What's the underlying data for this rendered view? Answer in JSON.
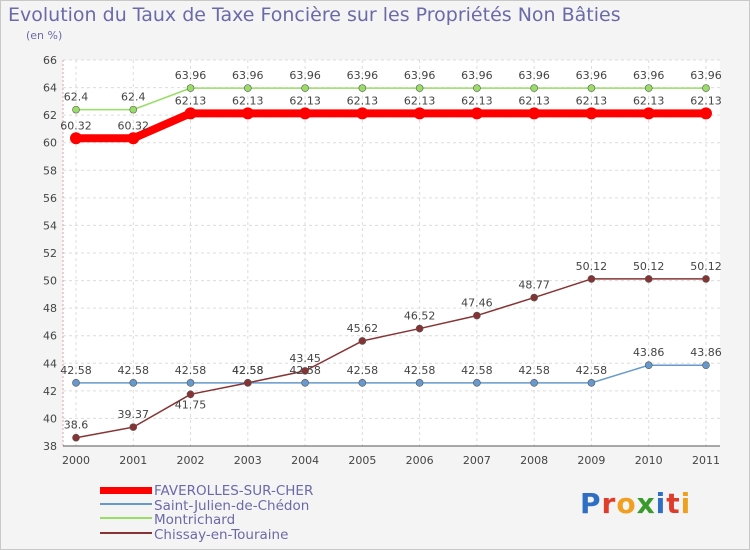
{
  "header": {
    "title": "Evolution du Taux de Taxe Foncière sur les Propriétés Non Bâties",
    "unit": "(en %)"
  },
  "logo": {
    "letters": [
      "P",
      "r",
      "o",
      "x",
      "i",
      "t",
      "i"
    ],
    "colors": [
      "#2e6fc4",
      "#e03c2c",
      "#f0a020",
      "#3a9a2c",
      "#2e6fc4",
      "#e03c2c",
      "#f0a020"
    ]
  },
  "chart_data": {
    "type": "line",
    "title": "Evolution du Taux de Taxe Foncière sur les Propriétés Non Bâties",
    "ylabel": "(en %)",
    "xlabel": "",
    "ylim": [
      38,
      66
    ],
    "yticks": [
      38,
      40,
      42,
      44,
      46,
      48,
      50,
      52,
      54,
      56,
      58,
      60,
      62,
      64,
      66
    ],
    "categories": [
      "2000",
      "2001",
      "2002",
      "2003",
      "2004",
      "2005",
      "2006",
      "2007",
      "2008",
      "2009",
      "2010",
      "2011"
    ],
    "grid": true,
    "series": [
      {
        "name": "FAVEROLLES-SUR-CHER",
        "color": "#ff0000",
        "values": [
          60.32,
          60.32,
          62.13,
          62.13,
          62.13,
          62.13,
          62.13,
          62.13,
          62.13,
          62.13,
          62.13,
          62.13
        ],
        "labels": [
          "60.32",
          "60.32",
          "62.13",
          "62.13",
          "62.13",
          "62.13",
          "62.13",
          "62.13",
          "62.13",
          "62.13",
          "62.13",
          "62.13"
        ]
      },
      {
        "name": "Saint-Julien-de-Chédon",
        "color": "#6699cc",
        "values": [
          42.58,
          42.58,
          42.58,
          42.58,
          42.58,
          42.58,
          42.58,
          42.58,
          42.58,
          42.58,
          43.86,
          43.86
        ],
        "labels": [
          "42.58",
          "42.58",
          "42.58",
          "42.58",
          "42.58",
          "42.58",
          "42.58",
          "42.58",
          "42.58",
          "42.58",
          "43.86",
          "43.86"
        ]
      },
      {
        "name": "Montrichard",
        "color": "#99dd66",
        "values": [
          62.4,
          62.4,
          63.96,
          63.96,
          63.96,
          63.96,
          63.96,
          63.96,
          63.96,
          63.96,
          63.96,
          63.96
        ],
        "labels": [
          "62.4",
          "62.4",
          "63.96",
          "63.96",
          "63.96",
          "63.96",
          "63.96",
          "63.96",
          "63.96",
          "63.96",
          "63.96",
          "63.96"
        ]
      },
      {
        "name": "Chissay-en-Touraine",
        "color": "#883333",
        "values": [
          38.6,
          39.37,
          41.75,
          42.58,
          43.45,
          45.62,
          46.52,
          47.46,
          48.77,
          50.12,
          50.12,
          50.12
        ],
        "labels": [
          "38.6",
          "39.37",
          "41.75",
          "42.58",
          "43.45",
          "45.62",
          "46.52",
          "47.46",
          "48.77",
          "50.12",
          "50.12",
          "50.12"
        ]
      }
    ]
  }
}
